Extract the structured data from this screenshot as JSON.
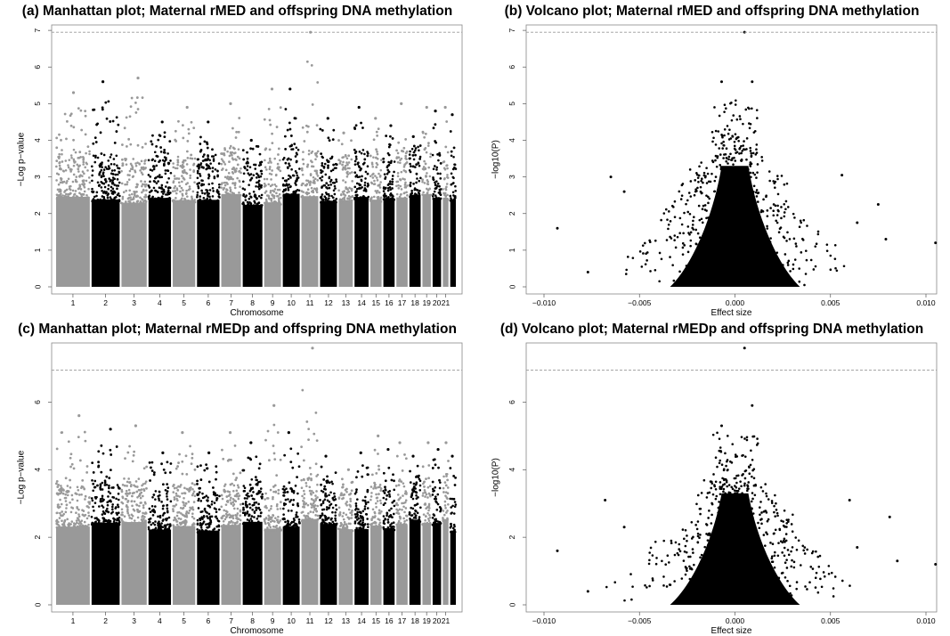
{
  "panels": [
    {
      "id": "a",
      "title": "(a) Manhattan plot; Maternal rMED and offspring DNA methylation",
      "chart_data": {
        "type": "scatter",
        "subtype": "manhattan",
        "xlabel": "Chromosome",
        "ylabel": "−Log p−value",
        "ylim": [
          0,
          7.1
        ],
        "yticks": [
          "0",
          "1",
          "2",
          "3",
          "4",
          "5",
          "6",
          "7"
        ],
        "threshold_line": 6.95,
        "x_tick_labels": [
          "1",
          "2",
          "3",
          "4",
          "5",
          "6",
          "7",
          "8",
          "9",
          "10",
          "11",
          "12",
          "13",
          "14",
          "15",
          "16",
          "17",
          "18",
          "19",
          "20",
          "21"
        ],
        "colors": {
          "odd": "#999999",
          "even": "#000000"
        },
        "chromosome_max": [
          5.3,
          5.6,
          5.7,
          4.5,
          4.9,
          4.5,
          5.0,
          4.0,
          5.4,
          5.4,
          6.95,
          4.6,
          4.2,
          4.9,
          4.6,
          4.4,
          5.0,
          4.1,
          4.9,
          4.8,
          4.9,
          4.7
        ]
      }
    },
    {
      "id": "b",
      "title": "(b) Volcano plot; Maternal rMED and offspring DNA methylation",
      "chart_data": {
        "type": "scatter",
        "subtype": "volcano",
        "xlabel": "Effect size",
        "ylabel": "−log10(P)",
        "xlim": [
          -0.01,
          0.01
        ],
        "ylim": [
          0,
          7.1
        ],
        "xticks": [
          "−0.010",
          "−0.005",
          "0.000",
          "0.005",
          "0.010"
        ],
        "yticks": [
          "0",
          "1",
          "2",
          "3",
          "4",
          "5",
          "6",
          "7"
        ],
        "threshold_line": 6.95,
        "notable_points": [
          [
            0.0005,
            6.95
          ],
          [
            -0.0093,
            1.6
          ],
          [
            0.0105,
            1.2
          ],
          [
            -0.0077,
            0.4
          ],
          [
            -0.0065,
            3.0
          ],
          [
            0.0056,
            3.05
          ],
          [
            0.0075,
            2.25
          ],
          [
            0.0009,
            5.6
          ],
          [
            -0.0007,
            5.6
          ],
          [
            -0.0058,
            2.6
          ],
          [
            0.0079,
            1.3
          ],
          [
            0.0064,
            1.75
          ]
        ]
      }
    },
    {
      "id": "c",
      "title": "(c) Manhattan plot; Maternal rMEDp and offspring DNA methylation",
      "chart_data": {
        "type": "scatter",
        "subtype": "manhattan",
        "xlabel": "Chromosome",
        "ylabel": "−Log p−value",
        "ylim": [
          0,
          7.7
        ],
        "yticks": [
          "0",
          "2",
          "4",
          "6"
        ],
        "threshold_line": 6.95,
        "x_tick_labels": [
          "1",
          "2",
          "3",
          "4",
          "5",
          "6",
          "7",
          "8",
          "9",
          "10",
          "11",
          "12",
          "13",
          "14",
          "15",
          "16",
          "17",
          "18",
          "19",
          "20",
          "21"
        ],
        "colors": {
          "odd": "#999999",
          "even": "#000000"
        },
        "chromosome_max": [
          5.6,
          5.2,
          5.3,
          4.5,
          5.1,
          4.5,
          5.1,
          4.8,
          5.9,
          5.1,
          7.6,
          4.4,
          4.0,
          4.5,
          5.0,
          4.6,
          4.8,
          4.4,
          4.8,
          4.6,
          4.8,
          4.4
        ]
      }
    },
    {
      "id": "d",
      "title": "(d) Volcano plot; Maternal rMEDp and offspring DNA methylation",
      "chart_data": {
        "type": "scatter",
        "subtype": "volcano",
        "xlabel": "Effect size",
        "ylabel": "−log10(P)",
        "xlim": [
          -0.01,
          0.01
        ],
        "ylim": [
          0,
          7.7
        ],
        "xticks": [
          "−0.010",
          "−0.005",
          "0.000",
          "0.005",
          "0.010"
        ],
        "yticks": [
          "0",
          "2",
          "4",
          "6"
        ],
        "threshold_line": 6.95,
        "notable_points": [
          [
            0.0005,
            7.6
          ],
          [
            -0.0093,
            1.6
          ],
          [
            0.0105,
            1.2
          ],
          [
            -0.0077,
            0.4
          ],
          [
            -0.0068,
            3.1
          ],
          [
            0.006,
            3.1
          ],
          [
            0.0081,
            2.6
          ],
          [
            0.0009,
            5.9
          ],
          [
            -0.0007,
            5.3
          ],
          [
            -0.0058,
            2.3
          ],
          [
            0.0085,
            1.3
          ],
          [
            0.0064,
            1.7
          ]
        ]
      }
    }
  ]
}
